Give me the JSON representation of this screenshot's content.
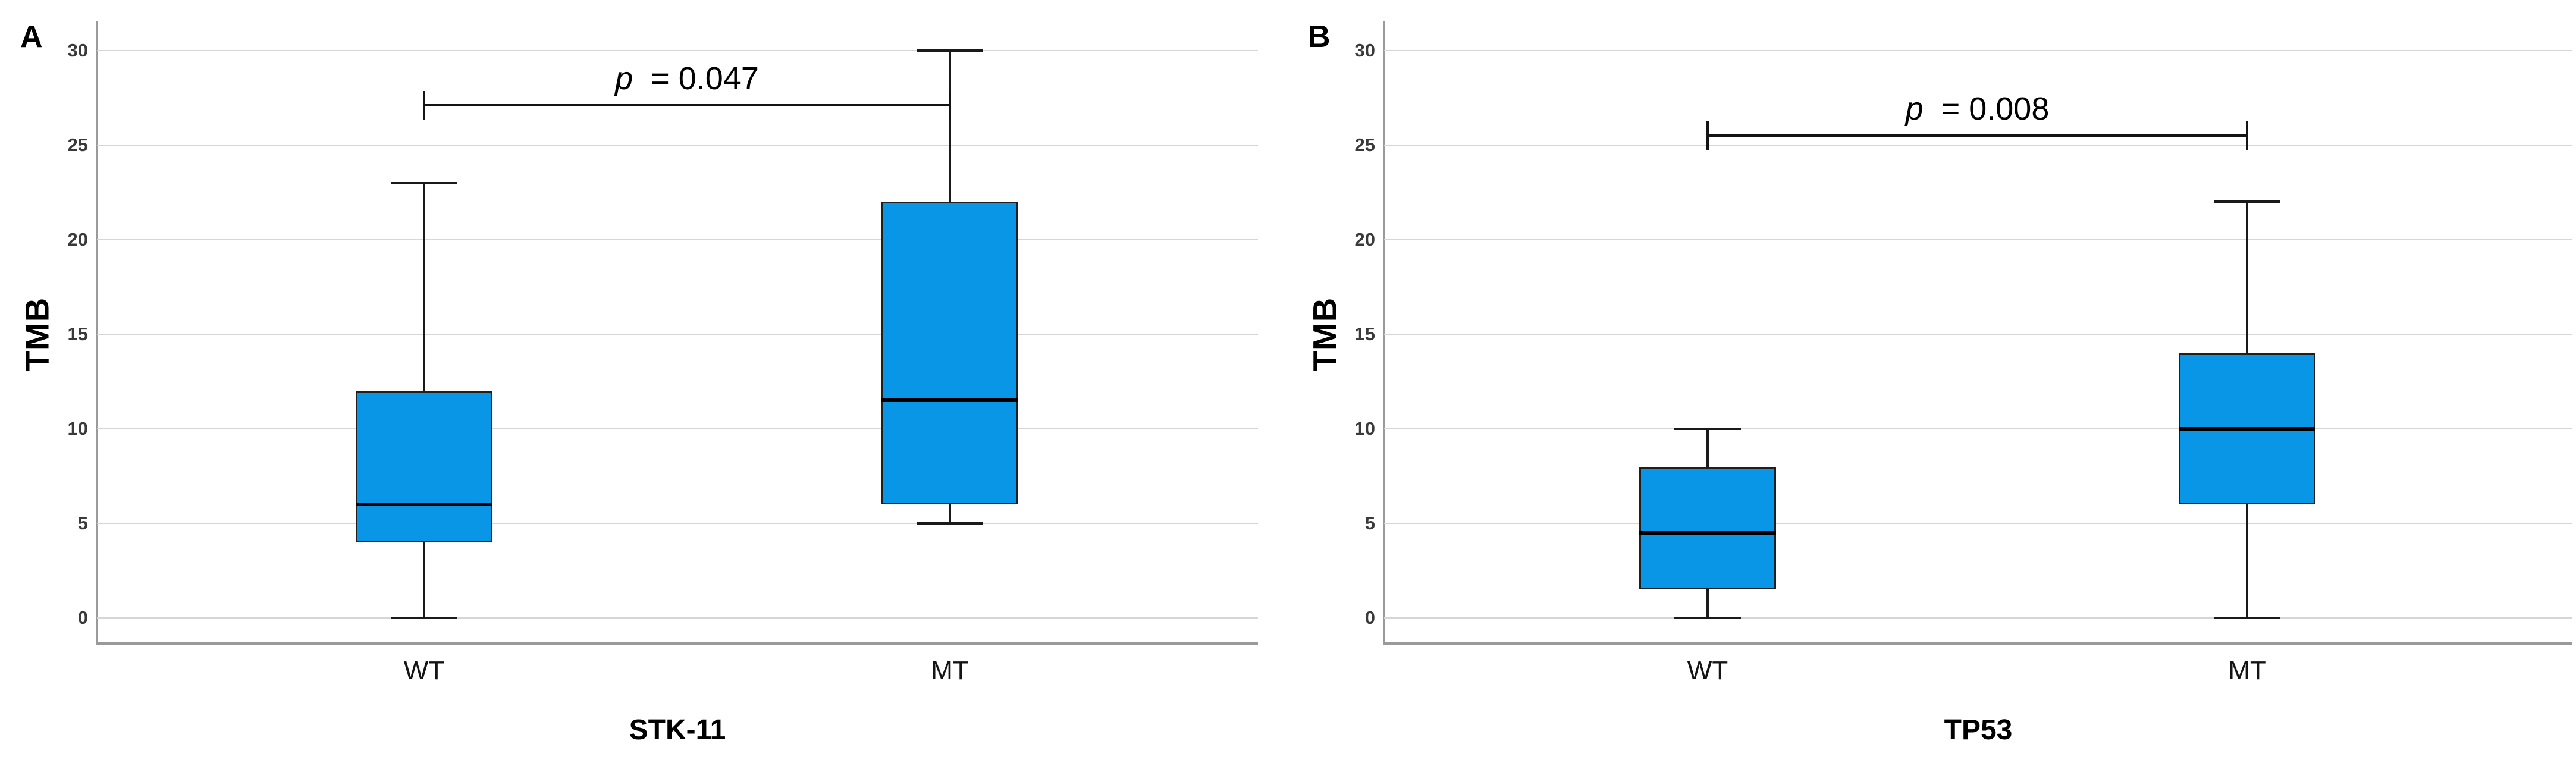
{
  "colors": {
    "box_fill": "#0A96E7",
    "box_border": "#1F1F1F",
    "median_line": "#000000",
    "gridline": "#D6D6D6",
    "axis_line": "#9A9A9A",
    "tick_label": "#3A3A3A",
    "text": "#000000"
  },
  "chart_data": [
    {
      "type": "box",
      "panel_label": "A",
      "xlabel": "STK-11",
      "ylabel": "TMB",
      "categories": [
        "WT",
        "MT"
      ],
      "ylim": [
        0,
        30
      ],
      "yticks": [
        0,
        5,
        10,
        15,
        20,
        25,
        30
      ],
      "grid": "horizontal",
      "legend": "none",
      "series": [
        {
          "category": "WT",
          "min": 0,
          "q1": 4,
          "median": 6,
          "q3": 12,
          "max": 23
        },
        {
          "category": "MT",
          "min": 5,
          "q1": 6,
          "median": 11.5,
          "q3": 22,
          "max": 30
        }
      ],
      "significance": {
        "p_symbol": "p",
        "p_text": "= 0.047",
        "level": 27.1,
        "between": [
          "WT",
          "MT"
        ]
      }
    },
    {
      "type": "box",
      "panel_label": "B",
      "xlabel": "TP53",
      "ylabel": "TMB",
      "categories": [
        "WT",
        "MT"
      ],
      "ylim": [
        0,
        30
      ],
      "yticks": [
        0,
        5,
        10,
        15,
        20,
        25,
        30
      ],
      "grid": "horizontal",
      "legend": "none",
      "series": [
        {
          "category": "WT",
          "min": 0,
          "q1": 1.5,
          "median": 4.5,
          "q3": 8,
          "max": 10
        },
        {
          "category": "MT",
          "min": 0,
          "q1": 6,
          "median": 10,
          "q3": 14,
          "max": 22
        }
      ],
      "significance": {
        "p_symbol": "p",
        "p_text": "= 0.008",
        "level": 25.5,
        "between": [
          "WT",
          "MT"
        ]
      }
    }
  ]
}
